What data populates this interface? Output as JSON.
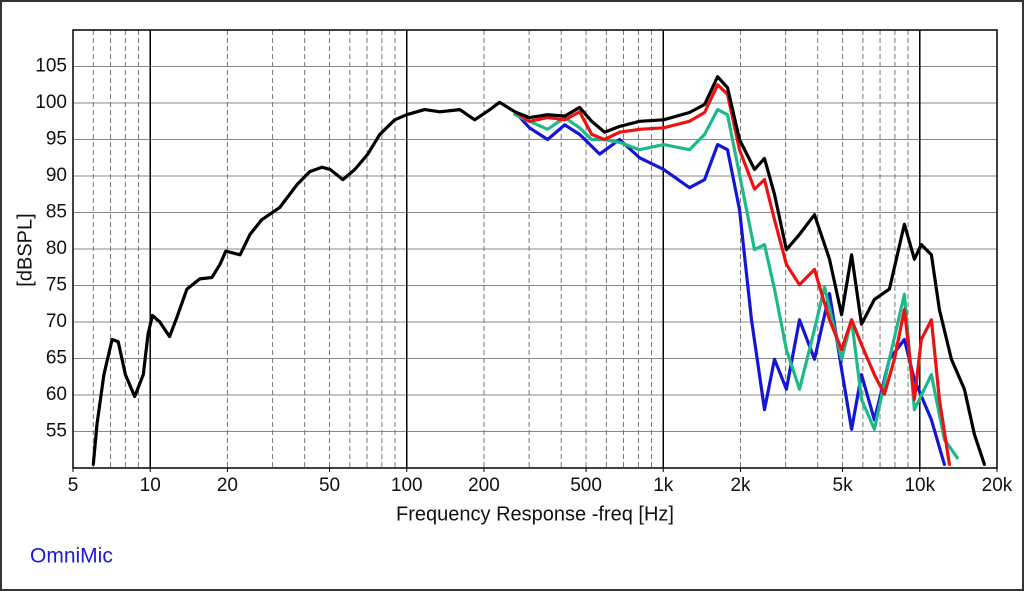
{
  "chart_data": {
    "type": "line",
    "xlabel": "Frequency Response -freq [Hz]",
    "ylabel": "[dBSPL]",
    "brand": "OmniMic",
    "log_x": true,
    "xlim": [
      5,
      20000
    ],
    "ylim": [
      50,
      110
    ],
    "xticks": [
      5,
      10,
      20,
      50,
      100,
      200,
      500,
      {
        "value": 1000,
        "label": "1k"
      },
      {
        "value": 2000,
        "label": "2k"
      },
      {
        "value": 5000,
        "label": "5k"
      },
      {
        "value": 10000,
        "label": "10k"
      },
      {
        "value": 20000,
        "label": "20k"
      }
    ],
    "yticks": [
      55,
      60,
      65,
      70,
      75,
      80,
      85,
      90,
      95,
      100,
      105
    ],
    "xgrid_major": [
      10,
      100,
      1000,
      10000
    ],
    "xgrid_minor": [
      6,
      7,
      8,
      9,
      20,
      30,
      40,
      50,
      60,
      70,
      80,
      90,
      200,
      300,
      400,
      500,
      600,
      700,
      800,
      900,
      2000,
      3000,
      4000,
      5000,
      6000,
      7000,
      8000,
      9000
    ],
    "grid": true,
    "series": [
      {
        "color": "#000000",
        "x": [
          6.0,
          6.2,
          6.6,
          7.1,
          7.5,
          8.0,
          8.7,
          9.4,
          9.8,
          10.2,
          10.9,
          11.9,
          12.7,
          13.9,
          15.6,
          17.4,
          18.7,
          19.7,
          22.4,
          24.5,
          27.2,
          32,
          37.3,
          41.9,
          46.7,
          50.2,
          56.4,
          62.8,
          70.5,
          78.5,
          89.8,
          100,
          117.5,
          134.5,
          161,
          184,
          211,
          230,
          264,
          301,
          354,
          413,
          472,
          526,
          590,
          676,
          809,
          1003,
          1266,
          1449,
          1628,
          1780,
          1982,
          2268,
          2481,
          2715,
          3020,
          3396,
          3888,
          4447,
          4955,
          5421,
          5929,
          6653,
          7615,
          8710,
          9530,
          10140,
          11100,
          11930,
          13280,
          14920,
          16330,
          17860
        ],
        "values": [
          50.5,
          56,
          62.8,
          67.6,
          67.3,
          62.8,
          59.8,
          62.8,
          68.3,
          70.9,
          70,
          68,
          70.6,
          74.5,
          75.9,
          76.1,
          77.9,
          79.7,
          79.2,
          82,
          84,
          85.7,
          88.8,
          90.6,
          91.2,
          90.9,
          89.5,
          90.9,
          93,
          95.7,
          97.7,
          98.4,
          99.1,
          98.8,
          99.1,
          97.7,
          99.1,
          100.1,
          98.8,
          98,
          98.4,
          98.2,
          99.4,
          97.5,
          96,
          96.8,
          97.5,
          97.7,
          98.7,
          99.8,
          103.6,
          102.1,
          95,
          90.9,
          92.4,
          87.5,
          79.9,
          82,
          84.7,
          78.6,
          71,
          79.2,
          69.7,
          73.1,
          74.5,
          83.4,
          78.6,
          80.6,
          79.2,
          71.7,
          64.9,
          60.8,
          54.6,
          50.5
        ]
      },
      {
        "color": "#ee1111",
        "x": [
          264,
          301,
          354,
          413,
          472,
          526,
          590,
          676,
          809,
          1003,
          1266,
          1449,
          1628,
          1780,
          1982,
          2268,
          2481,
          2715,
          3020,
          3396,
          3888,
          4447,
          4955,
          5421,
          5929,
          6653,
          7280,
          7960,
          8710,
          9530,
          10140,
          11100,
          11930,
          13040
        ],
        "values": [
          98.8,
          97.5,
          98,
          97.7,
          98.8,
          95.7,
          95,
          96,
          96.4,
          96.6,
          97.5,
          98.7,
          102.5,
          101.2,
          93.6,
          88.2,
          89.5,
          84,
          77.9,
          75.1,
          77.2,
          70.3,
          66.2,
          70.3,
          66.9,
          62.8,
          60.1,
          64.9,
          71.7,
          59.4,
          67.6,
          70.3,
          59.4,
          50.5
        ]
      },
      {
        "color": "#1db98a",
        "x": [
          264,
          301,
          354,
          413,
          472,
          526,
          590,
          676,
          809,
          1003,
          1266,
          1449,
          1628,
          1780,
          1982,
          2268,
          2481,
          2715,
          3020,
          3396,
          3888,
          4250,
          4955,
          5421,
          5929,
          6653,
          7615,
          8710,
          9530,
          11100,
          12470,
          14010
        ],
        "values": [
          98.4,
          97.5,
          96.4,
          98,
          96.6,
          95,
          95,
          94.6,
          93.6,
          94.3,
          93.6,
          95.7,
          99.1,
          98.4,
          90.2,
          79.9,
          80.6,
          74.5,
          66.2,
          60.8,
          69,
          74.8,
          64.9,
          70.3,
          59.4,
          55.3,
          64.9,
          73.8,
          58,
          62.8,
          53.9,
          51.4
        ]
      },
      {
        "color": "#1515d8",
        "x": [
          264,
          301,
          354,
          413,
          472,
          565,
          676,
          809,
          1003,
          1266,
          1449,
          1628,
          1780,
          1982,
          2208,
          2481,
          2715,
          3020,
          3396,
          3888,
          4447,
          4955,
          5421,
          5929,
          6653,
          7615,
          8710,
          9530,
          11100,
          12470
        ],
        "values": [
          98.8,
          96.6,
          95,
          97,
          95.7,
          93,
          95,
          92.5,
          90.9,
          88.4,
          89.5,
          94.3,
          93.6,
          85.4,
          70.3,
          58,
          64.9,
          60.8,
          70.3,
          64.9,
          73.9,
          63.5,
          55.3,
          62.8,
          56.6,
          64.9,
          67.6,
          62.1,
          56.6,
          50.5
        ]
      }
    ]
  }
}
